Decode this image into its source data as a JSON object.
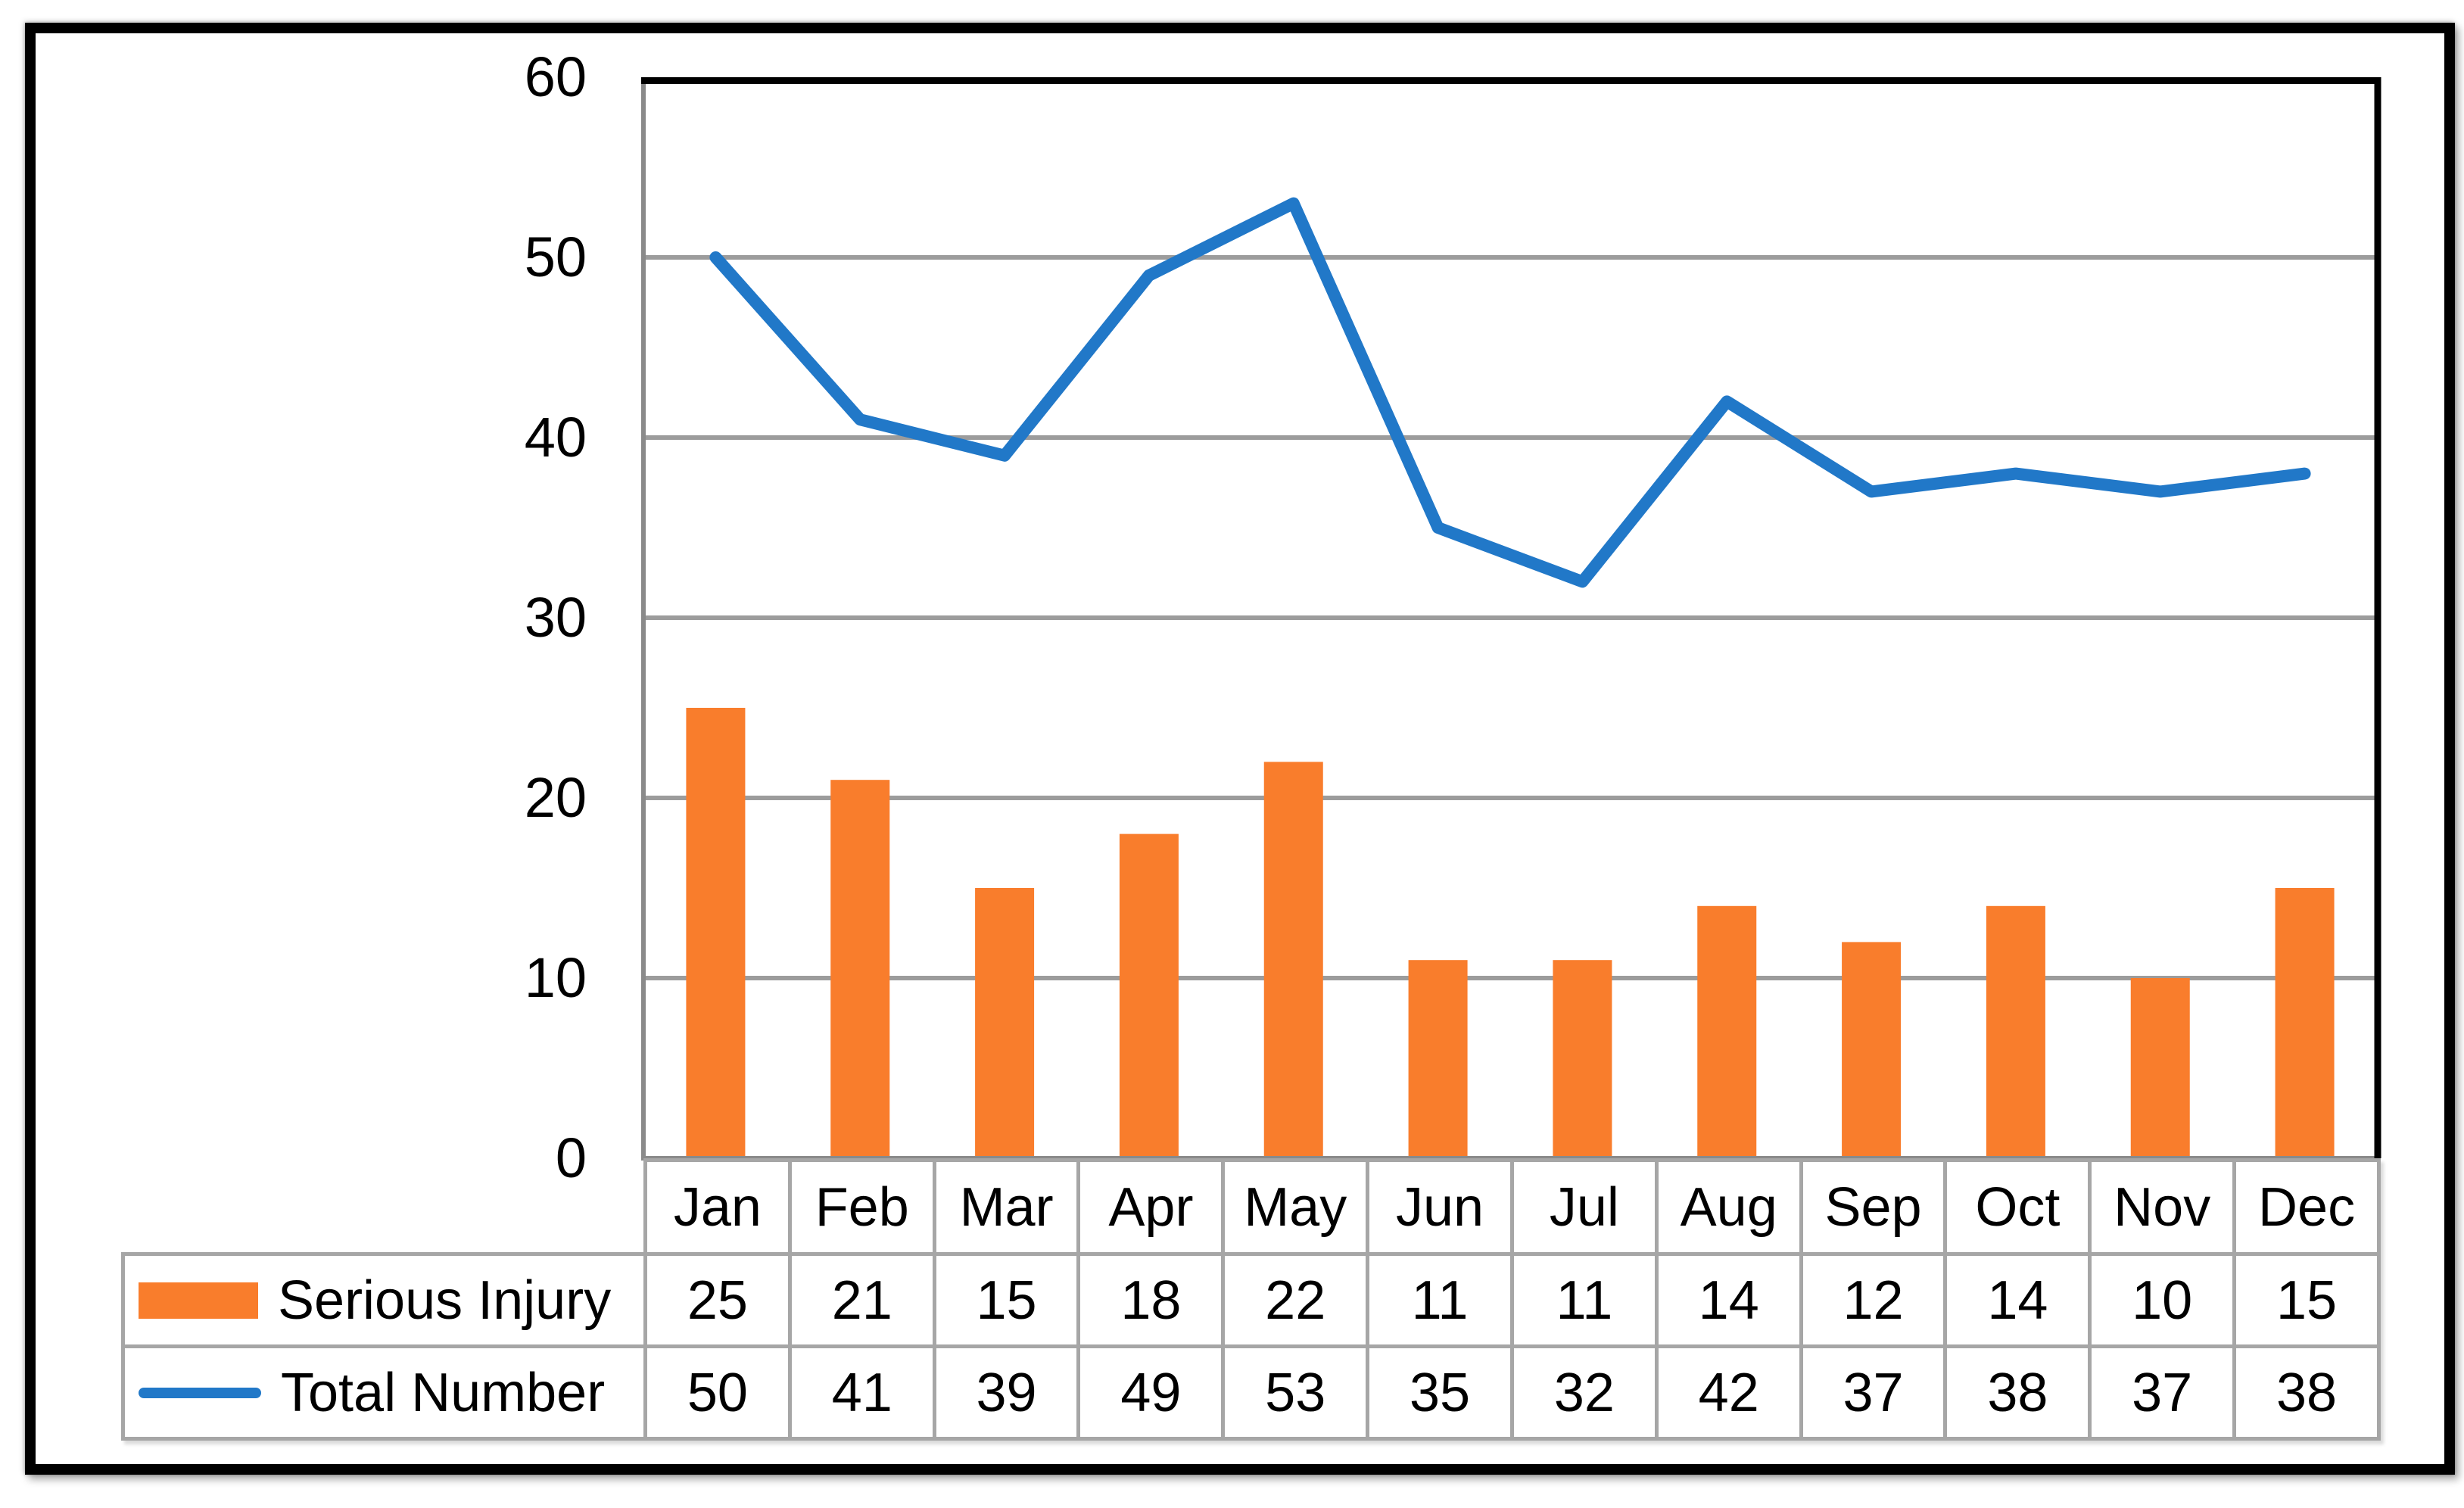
{
  "figure": {
    "background": "#FFFFFF",
    "border_color": "#000000"
  },
  "chart_data": {
    "type": "combo-bar-line",
    "title": "",
    "categories": [
      "Jan",
      "Feb",
      "Mar",
      "Apr",
      "May",
      "Jun",
      "Jul",
      "Aug",
      "Sep",
      "Oct",
      "Nov",
      "Dec"
    ],
    "series": [
      {
        "name": "Serious Injury",
        "chart_type": "bar",
        "color": "#F97D2C",
        "values": [
          25,
          21,
          15,
          18,
          22,
          11,
          11,
          14,
          12,
          14,
          10,
          15
        ]
      },
      {
        "name": "Total Number",
        "chart_type": "line",
        "color": "#2178C8",
        "values": [
          50,
          41,
          39,
          49,
          53,
          35,
          32,
          42,
          37,
          38,
          37,
          38
        ]
      }
    ],
    "xlabel": "",
    "ylabel": "",
    "ylim": [
      0,
      60
    ],
    "yticks": [
      "0",
      "10",
      "20",
      "30",
      "40",
      "50",
      "60"
    ],
    "grid": true,
    "legend_position": "data-table-left",
    "data_table_shown": true,
    "colors": {
      "gridline": "#9C9C9C",
      "axis": "#8A8A8A",
      "plot_border": "#000000",
      "table_border": "#A6A6A6",
      "text": "#000000"
    }
  }
}
